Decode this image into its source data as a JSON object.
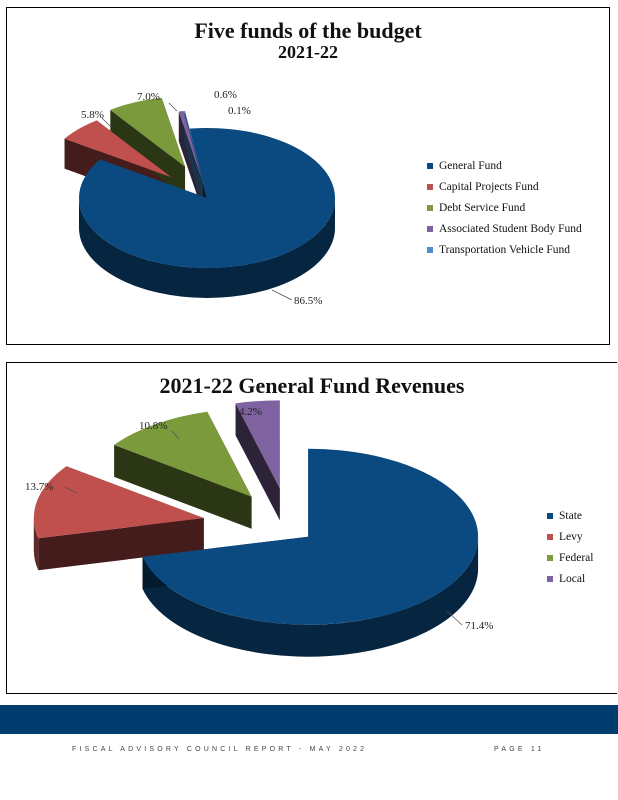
{
  "chart_data": [
    {
      "type": "pie",
      "title": "Five funds of the budget",
      "subtitle": "2021-22",
      "categories": [
        "General Fund",
        "Capital Projects Fund",
        "Debt Service Fund",
        "Associated Student Body Fund",
        "Transportation Vehicle Fund"
      ],
      "values": [
        86.5,
        5.8,
        7.0,
        0.6,
        0.1
      ],
      "data_labels": [
        "86.5%",
        "5.8%",
        "7.0%",
        "0.6%",
        "0.1%"
      ],
      "colors": [
        "#0b4a80",
        "#c0504d",
        "#7a9a3c",
        "#7f63a0",
        "#4f8fcf"
      ],
      "legend_position": "right"
    },
    {
      "type": "pie",
      "title": "2021-22 General Fund Revenues",
      "categories": [
        "State",
        "Levy",
        "Federal",
        "Local"
      ],
      "values": [
        71.4,
        13.7,
        10.8,
        4.2
      ],
      "data_labels": [
        "71.4%",
        "13.7%",
        "10.8%",
        "4.2%"
      ],
      "colors": [
        "#0b4a80",
        "#c0504d",
        "#7a9a3c",
        "#7f63a0"
      ],
      "legend_position": "right"
    }
  ],
  "footer": {
    "report": "FISCAL ADVISORY COUNCIL REPORT - MAY 2022",
    "page": "PAGE 11"
  }
}
